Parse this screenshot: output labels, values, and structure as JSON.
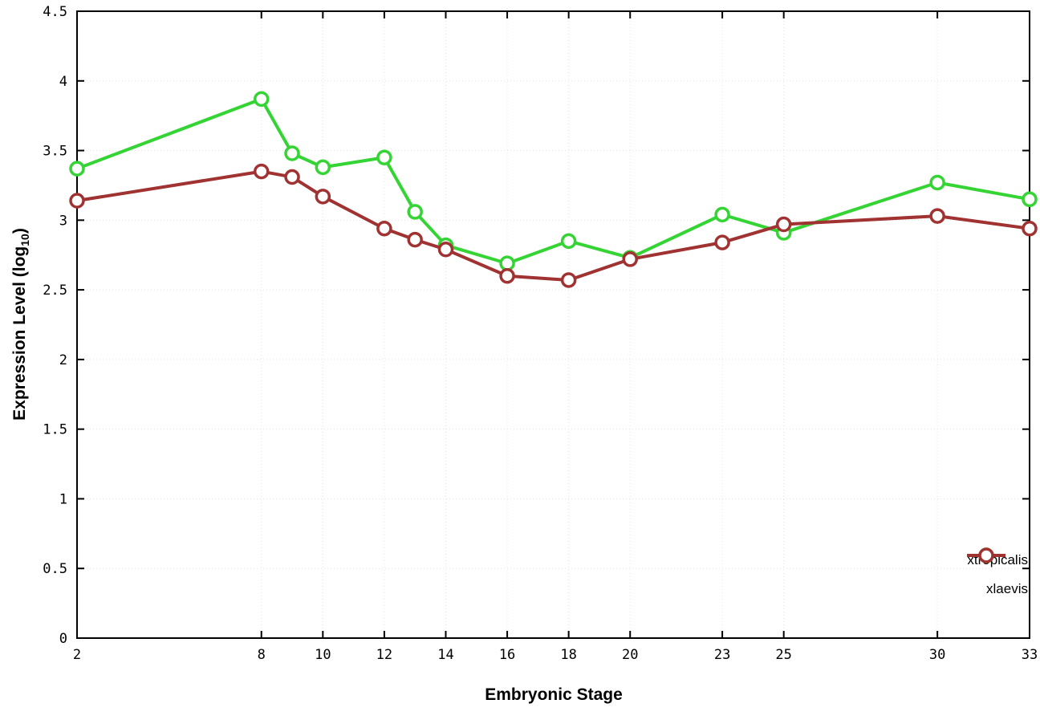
{
  "chart_data": {
    "type": "line",
    "title": "",
    "xlabel": "Embryonic Stage",
    "ylabel_prefix": "Expression Level (log",
    "ylabel_sub": "10",
    "ylabel_suffix": ")",
    "x": [
      2,
      8,
      9,
      10,
      12,
      13,
      14,
      16,
      18,
      20,
      23,
      25,
      30,
      33
    ],
    "x_ticks": [
      2,
      8,
      10,
      12,
      14,
      16,
      18,
      20,
      23,
      25,
      30,
      33
    ],
    "y_ticks": [
      0,
      0.5,
      1,
      1.5,
      2,
      2.5,
      3,
      3.5,
      4,
      4.5
    ],
    "xlim": [
      2,
      33
    ],
    "ylim": [
      0,
      4.5
    ],
    "grid": true,
    "legend_position": "bottom-right",
    "series": [
      {
        "name": "xtropicalis",
        "color": "#35d435",
        "values": [
          3.37,
          3.87,
          3.48,
          3.38,
          3.45,
          3.06,
          2.82,
          2.69,
          2.85,
          2.73,
          3.04,
          2.91,
          3.27,
          3.15
        ]
      },
      {
        "name": "xlaevis",
        "color": "#a03232",
        "values": [
          3.14,
          3.35,
          3.31,
          3.17,
          2.94,
          2.86,
          2.79,
          2.6,
          2.57,
          2.72,
          2.84,
          2.97,
          3.03,
          2.94
        ]
      }
    ]
  }
}
